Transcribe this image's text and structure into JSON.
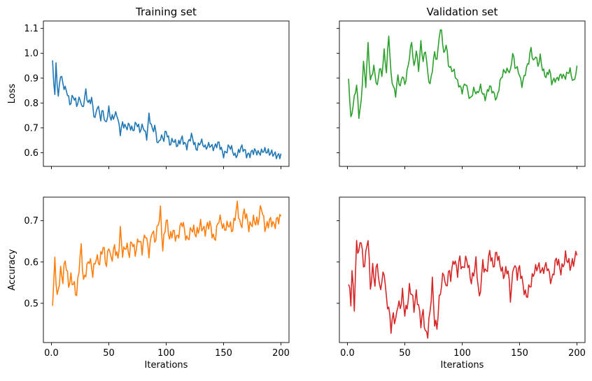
{
  "chart_data": [
    {
      "type": "line",
      "title": "Training set",
      "xlabel": "",
      "ylabel": "Loss",
      "xlim": [
        -7,
        207
      ],
      "ylim": [
        0.545,
        1.13
      ],
      "xticks": [
        0,
        50,
        100,
        150,
        200
      ],
      "yticks": [
        0.6,
        0.7,
        0.8,
        0.9,
        1.0,
        1.1
      ],
      "xtick_labels_visible": false,
      "ytick_labels_visible": true,
      "color": "#1f77b4",
      "x_start": 1,
      "x_end": 200,
      "anchors": [
        [
          1,
          0.965
        ],
        [
          3,
          0.84
        ],
        [
          4,
          0.96
        ],
        [
          6,
          0.82
        ],
        [
          8,
          0.91
        ],
        [
          10,
          0.87
        ],
        [
          14,
          0.85
        ],
        [
          16,
          0.8
        ],
        [
          19,
          0.82
        ],
        [
          22,
          0.79
        ],
        [
          25,
          0.83
        ],
        [
          27,
          0.78
        ],
        [
          30,
          0.84
        ],
        [
          32,
          0.79
        ],
        [
          35,
          0.82
        ],
        [
          38,
          0.74
        ],
        [
          40,
          0.79
        ],
        [
          43,
          0.73
        ],
        [
          45,
          0.77
        ],
        [
          47,
          0.72
        ],
        [
          50,
          0.78
        ],
        [
          52,
          0.73
        ],
        [
          55,
          0.74
        ],
        [
          57,
          0.76
        ],
        [
          60,
          0.69
        ],
        [
          62,
          0.72
        ],
        [
          65,
          0.69
        ],
        [
          68,
          0.71
        ],
        [
          71,
          0.7
        ],
        [
          74,
          0.72
        ],
        [
          77,
          0.68
        ],
        [
          80,
          0.71
        ],
        [
          83,
          0.67
        ],
        [
          85,
          0.75
        ],
        [
          88,
          0.68
        ],
        [
          90,
          0.7
        ],
        [
          93,
          0.64
        ],
        [
          95,
          0.67
        ],
        [
          98,
          0.65
        ],
        [
          100,
          0.68
        ],
        [
          103,
          0.64
        ],
        [
          106,
          0.66
        ],
        [
          110,
          0.62
        ],
        [
          114,
          0.66
        ],
        [
          118,
          0.63
        ],
        [
          122,
          0.66
        ],
        [
          126,
          0.62
        ],
        [
          130,
          0.65
        ],
        [
          134,
          0.61
        ],
        [
          138,
          0.64
        ],
        [
          142,
          0.62
        ],
        [
          146,
          0.63
        ],
        [
          150,
          0.6
        ],
        [
          155,
          0.62
        ],
        [
          160,
          0.59
        ],
        [
          165,
          0.62
        ],
        [
          170,
          0.59
        ],
        [
          175,
          0.61
        ],
        [
          180,
          0.59
        ],
        [
          185,
          0.62
        ],
        [
          190,
          0.59
        ],
        [
          195,
          0.6
        ],
        [
          200,
          0.585
        ]
      ],
      "noise": 0.022
    },
    {
      "type": "line",
      "title": "Validation set",
      "xlabel": "",
      "ylabel": "",
      "xlim": [
        -7,
        207
      ],
      "ylim": [
        0.545,
        1.13
      ],
      "xticks": [
        0,
        50,
        100,
        150,
        200
      ],
      "yticks": [
        0.6,
        0.7,
        0.8,
        0.9,
        1.0,
        1.1
      ],
      "xtick_labels_visible": false,
      "ytick_labels_visible": false,
      "color": "#2ca02c",
      "x_start": 1,
      "x_end": 200,
      "anchors": [
        [
          1,
          0.9
        ],
        [
          3,
          0.74
        ],
        [
          5,
          0.8
        ],
        [
          8,
          0.87
        ],
        [
          10,
          0.74
        ],
        [
          12,
          0.8
        ],
        [
          14,
          0.97
        ],
        [
          16,
          0.88
        ],
        [
          18,
          1.04
        ],
        [
          20,
          0.88
        ],
        [
          23,
          0.94
        ],
        [
          26,
          0.87
        ],
        [
          28,
          0.95
        ],
        [
          30,
          0.91
        ],
        [
          32,
          1.0
        ],
        [
          34,
          0.92
        ],
        [
          36,
          1.08
        ],
        [
          38,
          0.92
        ],
        [
          40,
          0.87
        ],
        [
          42,
          0.83
        ],
        [
          44,
          0.9
        ],
        [
          46,
          0.86
        ],
        [
          48,
          0.92
        ],
        [
          50,
          0.88
        ],
        [
          53,
          0.95
        ],
        [
          56,
          1.04
        ],
        [
          58,
          0.94
        ],
        [
          60,
          1.02
        ],
        [
          62,
          0.94
        ],
        [
          64,
          1.04
        ],
        [
          66,
          0.96
        ],
        [
          68,
          1.01
        ],
        [
          70,
          0.92
        ],
        [
          72,
          0.88
        ],
        [
          74,
          0.94
        ],
        [
          76,
          1.0
        ],
        [
          78,
          0.96
        ],
        [
          80,
          1.07
        ],
        [
          82,
          1.1
        ],
        [
          84,
          1.0
        ],
        [
          86,
          1.04
        ],
        [
          88,
          0.95
        ],
        [
          90,
          0.93
        ],
        [
          93,
          0.93
        ],
        [
          96,
          0.89
        ],
        [
          100,
          0.84
        ],
        [
          103,
          0.88
        ],
        [
          107,
          0.82
        ],
        [
          110,
          0.85
        ],
        [
          113,
          0.83
        ],
        [
          116,
          0.87
        ],
        [
          120,
          0.82
        ],
        [
          124,
          0.86
        ],
        [
          128,
          0.84
        ],
        [
          130,
          0.82
        ],
        [
          133,
          0.88
        ],
        [
          136,
          0.92
        ],
        [
          140,
          0.94
        ],
        [
          142,
          0.93
        ],
        [
          144,
          1.0
        ],
        [
          146,
          0.94
        ],
        [
          149,
          0.93
        ],
        [
          152,
          0.88
        ],
        [
          155,
          0.92
        ],
        [
          158,
          0.96
        ],
        [
          160,
          1.02
        ],
        [
          162,
          0.97
        ],
        [
          164,
          1.0
        ],
        [
          166,
          0.95
        ],
        [
          168,
          0.98
        ],
        [
          170,
          0.93
        ],
        [
          173,
          0.91
        ],
        [
          176,
          0.94
        ],
        [
          178,
          0.88
        ],
        [
          182,
          0.89
        ],
        [
          186,
          0.92
        ],
        [
          190,
          0.9
        ],
        [
          194,
          0.93
        ],
        [
          197,
          0.89
        ],
        [
          200,
          0.94
        ]
      ],
      "noise": 0.018
    },
    {
      "type": "line",
      "title": "",
      "xlabel": "Iterations",
      "ylabel": "Accuracy",
      "xlim": [
        -7,
        207
      ],
      "ylim": [
        0.405,
        0.757
      ],
      "xticks": [
        0,
        50,
        100,
        150,
        200
      ],
      "yticks": [
        0.5,
        0.6,
        0.7
      ],
      "xtick_labels_visible": true,
      "ytick_labels_visible": true,
      "color": "#ff7f0e",
      "x_start": 1,
      "x_end": 200,
      "anchors": [
        [
          1,
          0.5
        ],
        [
          2,
          0.54
        ],
        [
          3,
          0.61
        ],
        [
          5,
          0.52
        ],
        [
          8,
          0.58
        ],
        [
          10,
          0.55
        ],
        [
          12,
          0.6
        ],
        [
          15,
          0.55
        ],
        [
          17,
          0.57
        ],
        [
          20,
          0.54
        ],
        [
          22,
          0.51
        ],
        [
          24,
          0.58
        ],
        [
          26,
          0.64
        ],
        [
          28,
          0.56
        ],
        [
          30,
          0.58
        ],
        [
          33,
          0.6
        ],
        [
          36,
          0.57
        ],
        [
          39,
          0.62
        ],
        [
          42,
          0.6
        ],
        [
          45,
          0.63
        ],
        [
          48,
          0.59
        ],
        [
          50,
          0.65
        ],
        [
          52,
          0.61
        ],
        [
          55,
          0.63
        ],
        [
          58,
          0.6
        ],
        [
          60,
          0.68
        ],
        [
          62,
          0.63
        ],
        [
          65,
          0.64
        ],
        [
          68,
          0.61
        ],
        [
          70,
          0.65
        ],
        [
          73,
          0.63
        ],
        [
          76,
          0.66
        ],
        [
          79,
          0.62
        ],
        [
          82,
          0.67
        ],
        [
          85,
          0.63
        ],
        [
          88,
          0.68
        ],
        [
          90,
          0.64
        ],
        [
          92,
          0.67
        ],
        [
          95,
          0.73
        ],
        [
          97,
          0.64
        ],
        [
          100,
          0.7
        ],
        [
          103,
          0.65
        ],
        [
          106,
          0.68
        ],
        [
          110,
          0.66
        ],
        [
          114,
          0.69
        ],
        [
          118,
          0.66
        ],
        [
          122,
          0.68
        ],
        [
          126,
          0.66
        ],
        [
          130,
          0.7
        ],
        [
          134,
          0.67
        ],
        [
          138,
          0.69
        ],
        [
          142,
          0.66
        ],
        [
          146,
          0.7
        ],
        [
          150,
          0.68
        ],
        [
          154,
          0.7
        ],
        [
          158,
          0.67
        ],
        [
          162,
          0.74
        ],
        [
          165,
          0.69
        ],
        [
          168,
          0.72
        ],
        [
          172,
          0.68
        ],
        [
          176,
          0.71
        ],
        [
          180,
          0.69
        ],
        [
          183,
          0.73
        ],
        [
          186,
          0.69
        ],
        [
          190,
          0.7
        ],
        [
          194,
          0.68
        ],
        [
          197,
          0.71
        ],
        [
          200,
          0.715
        ]
      ],
      "noise": 0.02
    },
    {
      "type": "line",
      "title": "",
      "xlabel": "Iterations",
      "ylabel": "",
      "xlim": [
        -7,
        207
      ],
      "ylim": [
        0.405,
        0.757
      ],
      "xticks": [
        0,
        50,
        100,
        150,
        200
      ],
      "yticks": [
        0.5,
        0.6,
        0.7
      ],
      "xtick_labels_visible": true,
      "ytick_labels_visible": false,
      "color": "#d62728",
      "x_start": 1,
      "x_end": 200,
      "anchors": [
        [
          1,
          0.54
        ],
        [
          3,
          0.5
        ],
        [
          4,
          0.58
        ],
        [
          6,
          0.5
        ],
        [
          8,
          0.65
        ],
        [
          10,
          0.62
        ],
        [
          12,
          0.65
        ],
        [
          14,
          0.58
        ],
        [
          16,
          0.62
        ],
        [
          18,
          0.67
        ],
        [
          20,
          0.54
        ],
        [
          22,
          0.58
        ],
        [
          24,
          0.54
        ],
        [
          26,
          0.6
        ],
        [
          28,
          0.54
        ],
        [
          30,
          0.56
        ],
        [
          32,
          0.58
        ],
        [
          34,
          0.5
        ],
        [
          36,
          0.48
        ],
        [
          38,
          0.44
        ],
        [
          40,
          0.48
        ],
        [
          42,
          0.46
        ],
        [
          44,
          0.5
        ],
        [
          46,
          0.48
        ],
        [
          48,
          0.52
        ],
        [
          50,
          0.48
        ],
        [
          52,
          0.5
        ],
        [
          54,
          0.54
        ],
        [
          56,
          0.52
        ],
        [
          58,
          0.48
        ],
        [
          60,
          0.52
        ],
        [
          62,
          0.5
        ],
        [
          64,
          0.46
        ],
        [
          66,
          0.48
        ],
        [
          68,
          0.42
        ],
        [
          70,
          0.42
        ],
        [
          72,
          0.48
        ],
        [
          74,
          0.56
        ],
        [
          76,
          0.46
        ],
        [
          78,
          0.44
        ],
        [
          80,
          0.5
        ],
        [
          82,
          0.54
        ],
        [
          84,
          0.58
        ],
        [
          86,
          0.54
        ],
        [
          88,
          0.58
        ],
        [
          90,
          0.56
        ],
        [
          93,
          0.6
        ],
        [
          96,
          0.58
        ],
        [
          98,
          0.62
        ],
        [
          100,
          0.58
        ],
        [
          104,
          0.6
        ],
        [
          108,
          0.56
        ],
        [
          112,
          0.6
        ],
        [
          115,
          0.5
        ],
        [
          118,
          0.6
        ],
        [
          121,
          0.58
        ],
        [
          124,
          0.62
        ],
        [
          127,
          0.58
        ],
        [
          130,
          0.63
        ],
        [
          133,
          0.6
        ],
        [
          136,
          0.56
        ],
        [
          140,
          0.58
        ],
        [
          142,
          0.52
        ],
        [
          145,
          0.6
        ],
        [
          148,
          0.56
        ],
        [
          150,
          0.58
        ],
        [
          153,
          0.55
        ],
        [
          156,
          0.52
        ],
        [
          160,
          0.54
        ],
        [
          163,
          0.58
        ],
        [
          166,
          0.6
        ],
        [
          170,
          0.57
        ],
        [
          174,
          0.59
        ],
        [
          178,
          0.56
        ],
        [
          182,
          0.6
        ],
        [
          186,
          0.58
        ],
        [
          190,
          0.62
        ],
        [
          194,
          0.58
        ],
        [
          197,
          0.6
        ],
        [
          200,
          0.635
        ]
      ],
      "noise": 0.02
    }
  ]
}
